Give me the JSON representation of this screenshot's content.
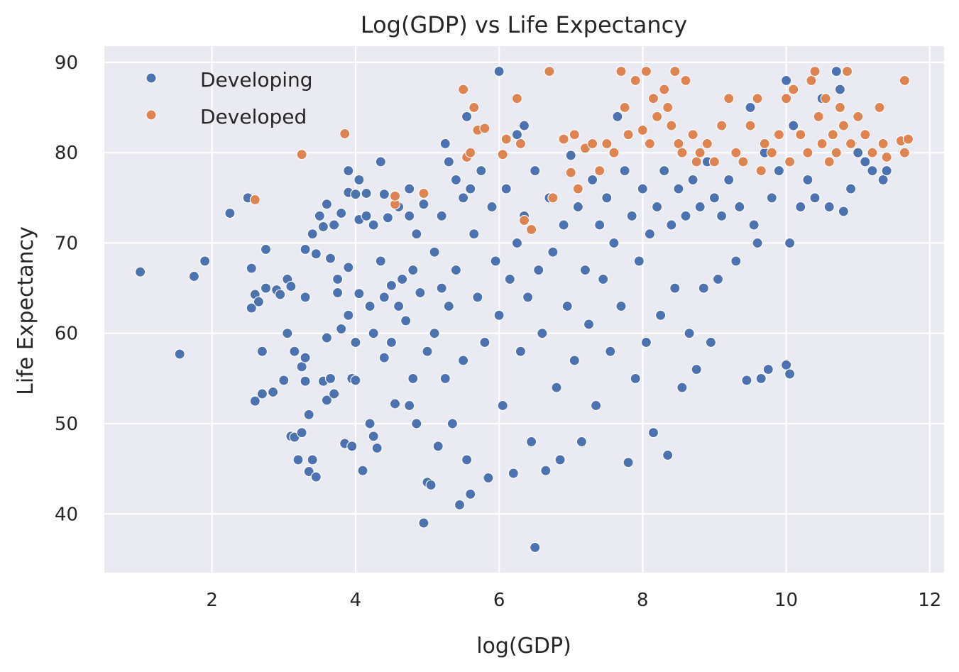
{
  "chart_data": {
    "type": "scatter",
    "title": "Log(GDP) vs Life Expectancy",
    "xlabel": "log(GDP)",
    "ylabel": "Life Expectancy",
    "xlim": [
      0.5,
      12.2
    ],
    "ylim": [
      33.5,
      91.8
    ],
    "xticks": [
      2,
      4,
      6,
      8,
      10,
      12
    ],
    "yticks": [
      40,
      50,
      60,
      70,
      80,
      90
    ],
    "grid": true,
    "legend_position": "top-left",
    "series": [
      {
        "name": "Developing",
        "color": "#4c72b0",
        "points": [
          [
            1.0,
            66.8
          ],
          [
            1.55,
            57.7
          ],
          [
            1.75,
            66.3
          ],
          [
            1.9,
            68.0
          ],
          [
            2.25,
            73.3
          ],
          [
            2.5,
            75.0
          ],
          [
            2.55,
            62.8
          ],
          [
            2.55,
            67.2
          ],
          [
            2.6,
            52.5
          ],
          [
            2.6,
            64.3
          ],
          [
            2.65,
            63.5
          ],
          [
            2.7,
            58.0
          ],
          [
            2.7,
            53.3
          ],
          [
            2.75,
            69.3
          ],
          [
            2.75,
            65.0
          ],
          [
            2.85,
            53.5
          ],
          [
            2.9,
            64.8
          ],
          [
            2.95,
            64.3
          ],
          [
            3.0,
            54.8
          ],
          [
            3.05,
            66.0
          ],
          [
            3.05,
            60.0
          ],
          [
            3.1,
            65.2
          ],
          [
            3.1,
            48.6
          ],
          [
            3.15,
            58.0
          ],
          [
            3.15,
            48.5
          ],
          [
            3.2,
            46.0
          ],
          [
            3.25,
            49.0
          ],
          [
            3.25,
            56.3
          ],
          [
            3.3,
            69.3
          ],
          [
            3.3,
            64.0
          ],
          [
            3.3,
            54.7
          ],
          [
            3.3,
            57.3
          ],
          [
            3.35,
            51.0
          ],
          [
            3.35,
            44.7
          ],
          [
            3.4,
            71.0
          ],
          [
            3.4,
            46.0
          ],
          [
            3.45,
            68.8
          ],
          [
            3.45,
            44.1
          ],
          [
            3.5,
            73.0
          ],
          [
            3.55,
            71.8
          ],
          [
            3.55,
            54.7
          ],
          [
            3.6,
            74.3
          ],
          [
            3.6,
            59.5
          ],
          [
            3.6,
            52.6
          ],
          [
            3.65,
            68.3
          ],
          [
            3.65,
            55.0
          ],
          [
            3.7,
            72.0
          ],
          [
            3.7,
            53.3
          ],
          [
            3.75,
            66.0
          ],
          [
            3.75,
            64.5
          ],
          [
            3.8,
            73.3
          ],
          [
            3.8,
            60.5
          ],
          [
            3.85,
            47.8
          ],
          [
            3.9,
            78.0
          ],
          [
            3.9,
            75.6
          ],
          [
            3.9,
            67.3
          ],
          [
            3.9,
            62.0
          ],
          [
            3.95,
            55.0
          ],
          [
            3.95,
            47.5
          ],
          [
            4.0,
            75.4
          ],
          [
            4.0,
            59.0
          ],
          [
            4.0,
            54.8
          ],
          [
            4.05,
            77.0
          ],
          [
            4.05,
            72.6
          ],
          [
            4.05,
            64.4
          ],
          [
            4.1,
            44.8
          ],
          [
            4.15,
            75.5
          ],
          [
            4.15,
            73.0
          ],
          [
            4.2,
            63.0
          ],
          [
            4.2,
            50.0
          ],
          [
            4.25,
            72.0
          ],
          [
            4.25,
            60.0
          ],
          [
            4.25,
            48.6
          ],
          [
            4.3,
            47.3
          ],
          [
            4.35,
            79.0
          ],
          [
            4.35,
            68.0
          ],
          [
            4.4,
            75.4
          ],
          [
            4.4,
            64.0
          ],
          [
            4.4,
            57.3
          ],
          [
            4.45,
            72.8
          ],
          [
            4.5,
            65.3
          ],
          [
            4.5,
            59.0
          ],
          [
            4.55,
            52.2
          ],
          [
            4.6,
            74.0
          ],
          [
            4.6,
            63.0
          ],
          [
            4.65,
            66.0
          ],
          [
            4.7,
            61.4
          ],
          [
            4.75,
            76.0
          ],
          [
            4.75,
            73.0
          ],
          [
            4.75,
            52.0
          ],
          [
            4.8,
            67.0
          ],
          [
            4.8,
            55.0
          ],
          [
            4.85,
            71.0
          ],
          [
            4.85,
            50.0
          ],
          [
            4.9,
            64.5
          ],
          [
            4.95,
            39.0
          ],
          [
            4.95,
            74.3
          ],
          [
            5.0,
            58.0
          ],
          [
            5.0,
            43.5
          ],
          [
            5.05,
            43.2
          ],
          [
            5.1,
            69.0
          ],
          [
            5.1,
            60.0
          ],
          [
            5.15,
            47.5
          ],
          [
            5.2,
            73.0
          ],
          [
            5.2,
            65.0
          ],
          [
            5.25,
            81.0
          ],
          [
            5.25,
            55.0
          ],
          [
            5.3,
            79.0
          ],
          [
            5.3,
            63.0
          ],
          [
            5.35,
            50.0
          ],
          [
            5.4,
            77.0
          ],
          [
            5.4,
            67.0
          ],
          [
            5.45,
            41.0
          ],
          [
            5.5,
            75.0
          ],
          [
            5.5,
            57.0
          ],
          [
            5.55,
            84.0
          ],
          [
            5.55,
            46.0
          ],
          [
            5.6,
            42.2
          ],
          [
            5.6,
            76.0
          ],
          [
            5.65,
            71.0
          ],
          [
            5.7,
            64.0
          ],
          [
            5.75,
            78.0
          ],
          [
            5.8,
            59.0
          ],
          [
            5.85,
            44.0
          ],
          [
            5.9,
            74.0
          ],
          [
            5.95,
            68.0
          ],
          [
            6.0,
            89.0
          ],
          [
            6.0,
            62.0
          ],
          [
            6.05,
            52.0
          ],
          [
            6.1,
            76.0
          ],
          [
            6.15,
            66.0
          ],
          [
            6.2,
            44.5
          ],
          [
            6.25,
            82.0
          ],
          [
            6.25,
            70.0
          ],
          [
            6.3,
            58.0
          ],
          [
            6.35,
            83.0
          ],
          [
            6.35,
            73.0
          ],
          [
            6.4,
            64.0
          ],
          [
            6.45,
            48.0
          ],
          [
            6.5,
            36.3
          ],
          [
            6.5,
            78.0
          ],
          [
            6.55,
            67.0
          ],
          [
            6.6,
            60.0
          ],
          [
            6.65,
            44.8
          ],
          [
            6.7,
            75.0
          ],
          [
            6.75,
            69.0
          ],
          [
            6.8,
            54.0
          ],
          [
            6.85,
            46.0
          ],
          [
            6.9,
            72.0
          ],
          [
            6.95,
            63.0
          ],
          [
            7.0,
            79.7
          ],
          [
            7.05,
            57.0
          ],
          [
            7.1,
            74.0
          ],
          [
            7.15,
            48.0
          ],
          [
            7.2,
            67.0
          ],
          [
            7.25,
            61.0
          ],
          [
            7.3,
            77.0
          ],
          [
            7.35,
            52.0
          ],
          [
            7.4,
            72.0
          ],
          [
            7.45,
            66.0
          ],
          [
            7.5,
            75.0
          ],
          [
            7.55,
            58.0
          ],
          [
            7.6,
            70.0
          ],
          [
            7.65,
            84.0
          ],
          [
            7.7,
            63.0
          ],
          [
            7.75,
            78.0
          ],
          [
            7.8,
            45.7
          ],
          [
            7.85,
            73.0
          ],
          [
            7.9,
            55.0
          ],
          [
            7.95,
            68.0
          ],
          [
            8.0,
            76.0
          ],
          [
            8.05,
            59.0
          ],
          [
            8.1,
            71.0
          ],
          [
            8.15,
            49.0
          ],
          [
            8.2,
            74.0
          ],
          [
            8.25,
            62.0
          ],
          [
            8.3,
            78.0
          ],
          [
            8.35,
            46.5
          ],
          [
            8.4,
            72.0
          ],
          [
            8.45,
            65.0
          ],
          [
            8.5,
            76.0
          ],
          [
            8.55,
            54.0
          ],
          [
            8.6,
            73.0
          ],
          [
            8.65,
            60.0
          ],
          [
            8.7,
            77.0
          ],
          [
            8.75,
            56.0
          ],
          [
            8.8,
            74.0
          ],
          [
            8.85,
            65.0
          ],
          [
            8.9,
            79.0
          ],
          [
            8.95,
            59.0
          ],
          [
            9.0,
            75.0
          ],
          [
            9.05,
            66.0
          ],
          [
            9.1,
            73.0
          ],
          [
            9.2,
            77.0
          ],
          [
            9.3,
            68.0
          ],
          [
            9.35,
            74.0
          ],
          [
            9.45,
            54.8
          ],
          [
            9.5,
            85.0
          ],
          [
            9.55,
            72.0
          ],
          [
            9.6,
            70.0
          ],
          [
            9.65,
            55.0
          ],
          [
            9.7,
            80.0
          ],
          [
            9.75,
            56.0
          ],
          [
            9.8,
            75.0
          ],
          [
            9.9,
            78.0
          ],
          [
            10.0,
            88.0
          ],
          [
            10.0,
            56.5
          ],
          [
            10.05,
            55.5
          ],
          [
            10.05,
            70.0
          ],
          [
            10.1,
            83.0
          ],
          [
            10.2,
            74.0
          ],
          [
            10.3,
            77.0
          ],
          [
            10.4,
            75.0
          ],
          [
            10.5,
            86.0
          ],
          [
            10.6,
            74.0
          ],
          [
            10.7,
            89.0
          ],
          [
            10.75,
            87.0
          ],
          [
            10.8,
            73.5
          ],
          [
            10.9,
            76.0
          ],
          [
            11.0,
            80.0
          ],
          [
            11.1,
            79.0
          ],
          [
            11.2,
            78.0
          ],
          [
            11.35,
            77.0
          ],
          [
            11.4,
            78.0
          ]
        ]
      },
      {
        "name": "Developed",
        "color": "#dd8452",
        "points": [
          [
            2.6,
            74.8
          ],
          [
            3.25,
            79.8
          ],
          [
            3.85,
            82.1
          ],
          [
            4.55,
            74.3
          ],
          [
            4.55,
            75.2
          ],
          [
            4.95,
            75.5
          ],
          [
            5.5,
            87.0
          ],
          [
            5.55,
            79.5
          ],
          [
            5.6,
            80.0
          ],
          [
            5.65,
            85.0
          ],
          [
            5.7,
            82.5
          ],
          [
            5.8,
            82.7
          ],
          [
            6.05,
            79.8
          ],
          [
            6.1,
            81.5
          ],
          [
            6.25,
            86.0
          ],
          [
            6.3,
            81.0
          ],
          [
            6.35,
            72.5
          ],
          [
            6.45,
            71.5
          ],
          [
            6.7,
            89.0
          ],
          [
            6.75,
            75.0
          ],
          [
            6.9,
            81.5
          ],
          [
            7.0,
            77.8
          ],
          [
            7.05,
            82.0
          ],
          [
            7.1,
            76.0
          ],
          [
            7.2,
            80.5
          ],
          [
            7.3,
            81.0
          ],
          [
            7.4,
            78.0
          ],
          [
            7.5,
            81.0
          ],
          [
            7.6,
            80.0
          ],
          [
            7.7,
            89.0
          ],
          [
            7.75,
            85.0
          ],
          [
            7.8,
            82.0
          ],
          [
            7.9,
            88.0
          ],
          [
            8.0,
            82.5
          ],
          [
            8.05,
            89.0
          ],
          [
            8.1,
            81.0
          ],
          [
            8.15,
            86.0
          ],
          [
            8.2,
            84.0
          ],
          [
            8.3,
            87.0
          ],
          [
            8.35,
            85.0
          ],
          [
            8.4,
            83.0
          ],
          [
            8.45,
            89.0
          ],
          [
            8.5,
            81.0
          ],
          [
            8.55,
            80.0
          ],
          [
            8.6,
            88.0
          ],
          [
            8.7,
            82.0
          ],
          [
            8.75,
            79.0
          ],
          [
            8.8,
            80.0
          ],
          [
            8.9,
            81.0
          ],
          [
            9.0,
            79.0
          ],
          [
            9.1,
            83.0
          ],
          [
            9.2,
            86.0
          ],
          [
            9.3,
            80.0
          ],
          [
            9.4,
            79.0
          ],
          [
            9.5,
            83.0
          ],
          [
            9.6,
            86.0
          ],
          [
            9.65,
            78.0
          ],
          [
            9.7,
            81.0
          ],
          [
            9.8,
            80.0
          ],
          [
            9.9,
            82.0
          ],
          [
            10.0,
            86.0
          ],
          [
            10.05,
            79.0
          ],
          [
            10.1,
            87.0
          ],
          [
            10.2,
            82.0
          ],
          [
            10.3,
            80.0
          ],
          [
            10.35,
            88.0
          ],
          [
            10.4,
            89.0
          ],
          [
            10.45,
            84.0
          ],
          [
            10.5,
            81.0
          ],
          [
            10.55,
            86.0
          ],
          [
            10.6,
            79.0
          ],
          [
            10.65,
            82.0
          ],
          [
            10.7,
            80.0
          ],
          [
            10.75,
            85.0
          ],
          [
            10.8,
            83.0
          ],
          [
            10.85,
            89.0
          ],
          [
            10.9,
            81.0
          ],
          [
            11.0,
            84.0
          ],
          [
            11.1,
            82.0
          ],
          [
            11.2,
            80.0
          ],
          [
            11.3,
            85.0
          ],
          [
            11.35,
            81.0
          ],
          [
            11.4,
            79.5
          ],
          [
            11.6,
            81.3
          ],
          [
            11.65,
            88.0
          ],
          [
            11.65,
            80.0
          ],
          [
            11.7,
            81.5
          ]
        ]
      }
    ]
  }
}
